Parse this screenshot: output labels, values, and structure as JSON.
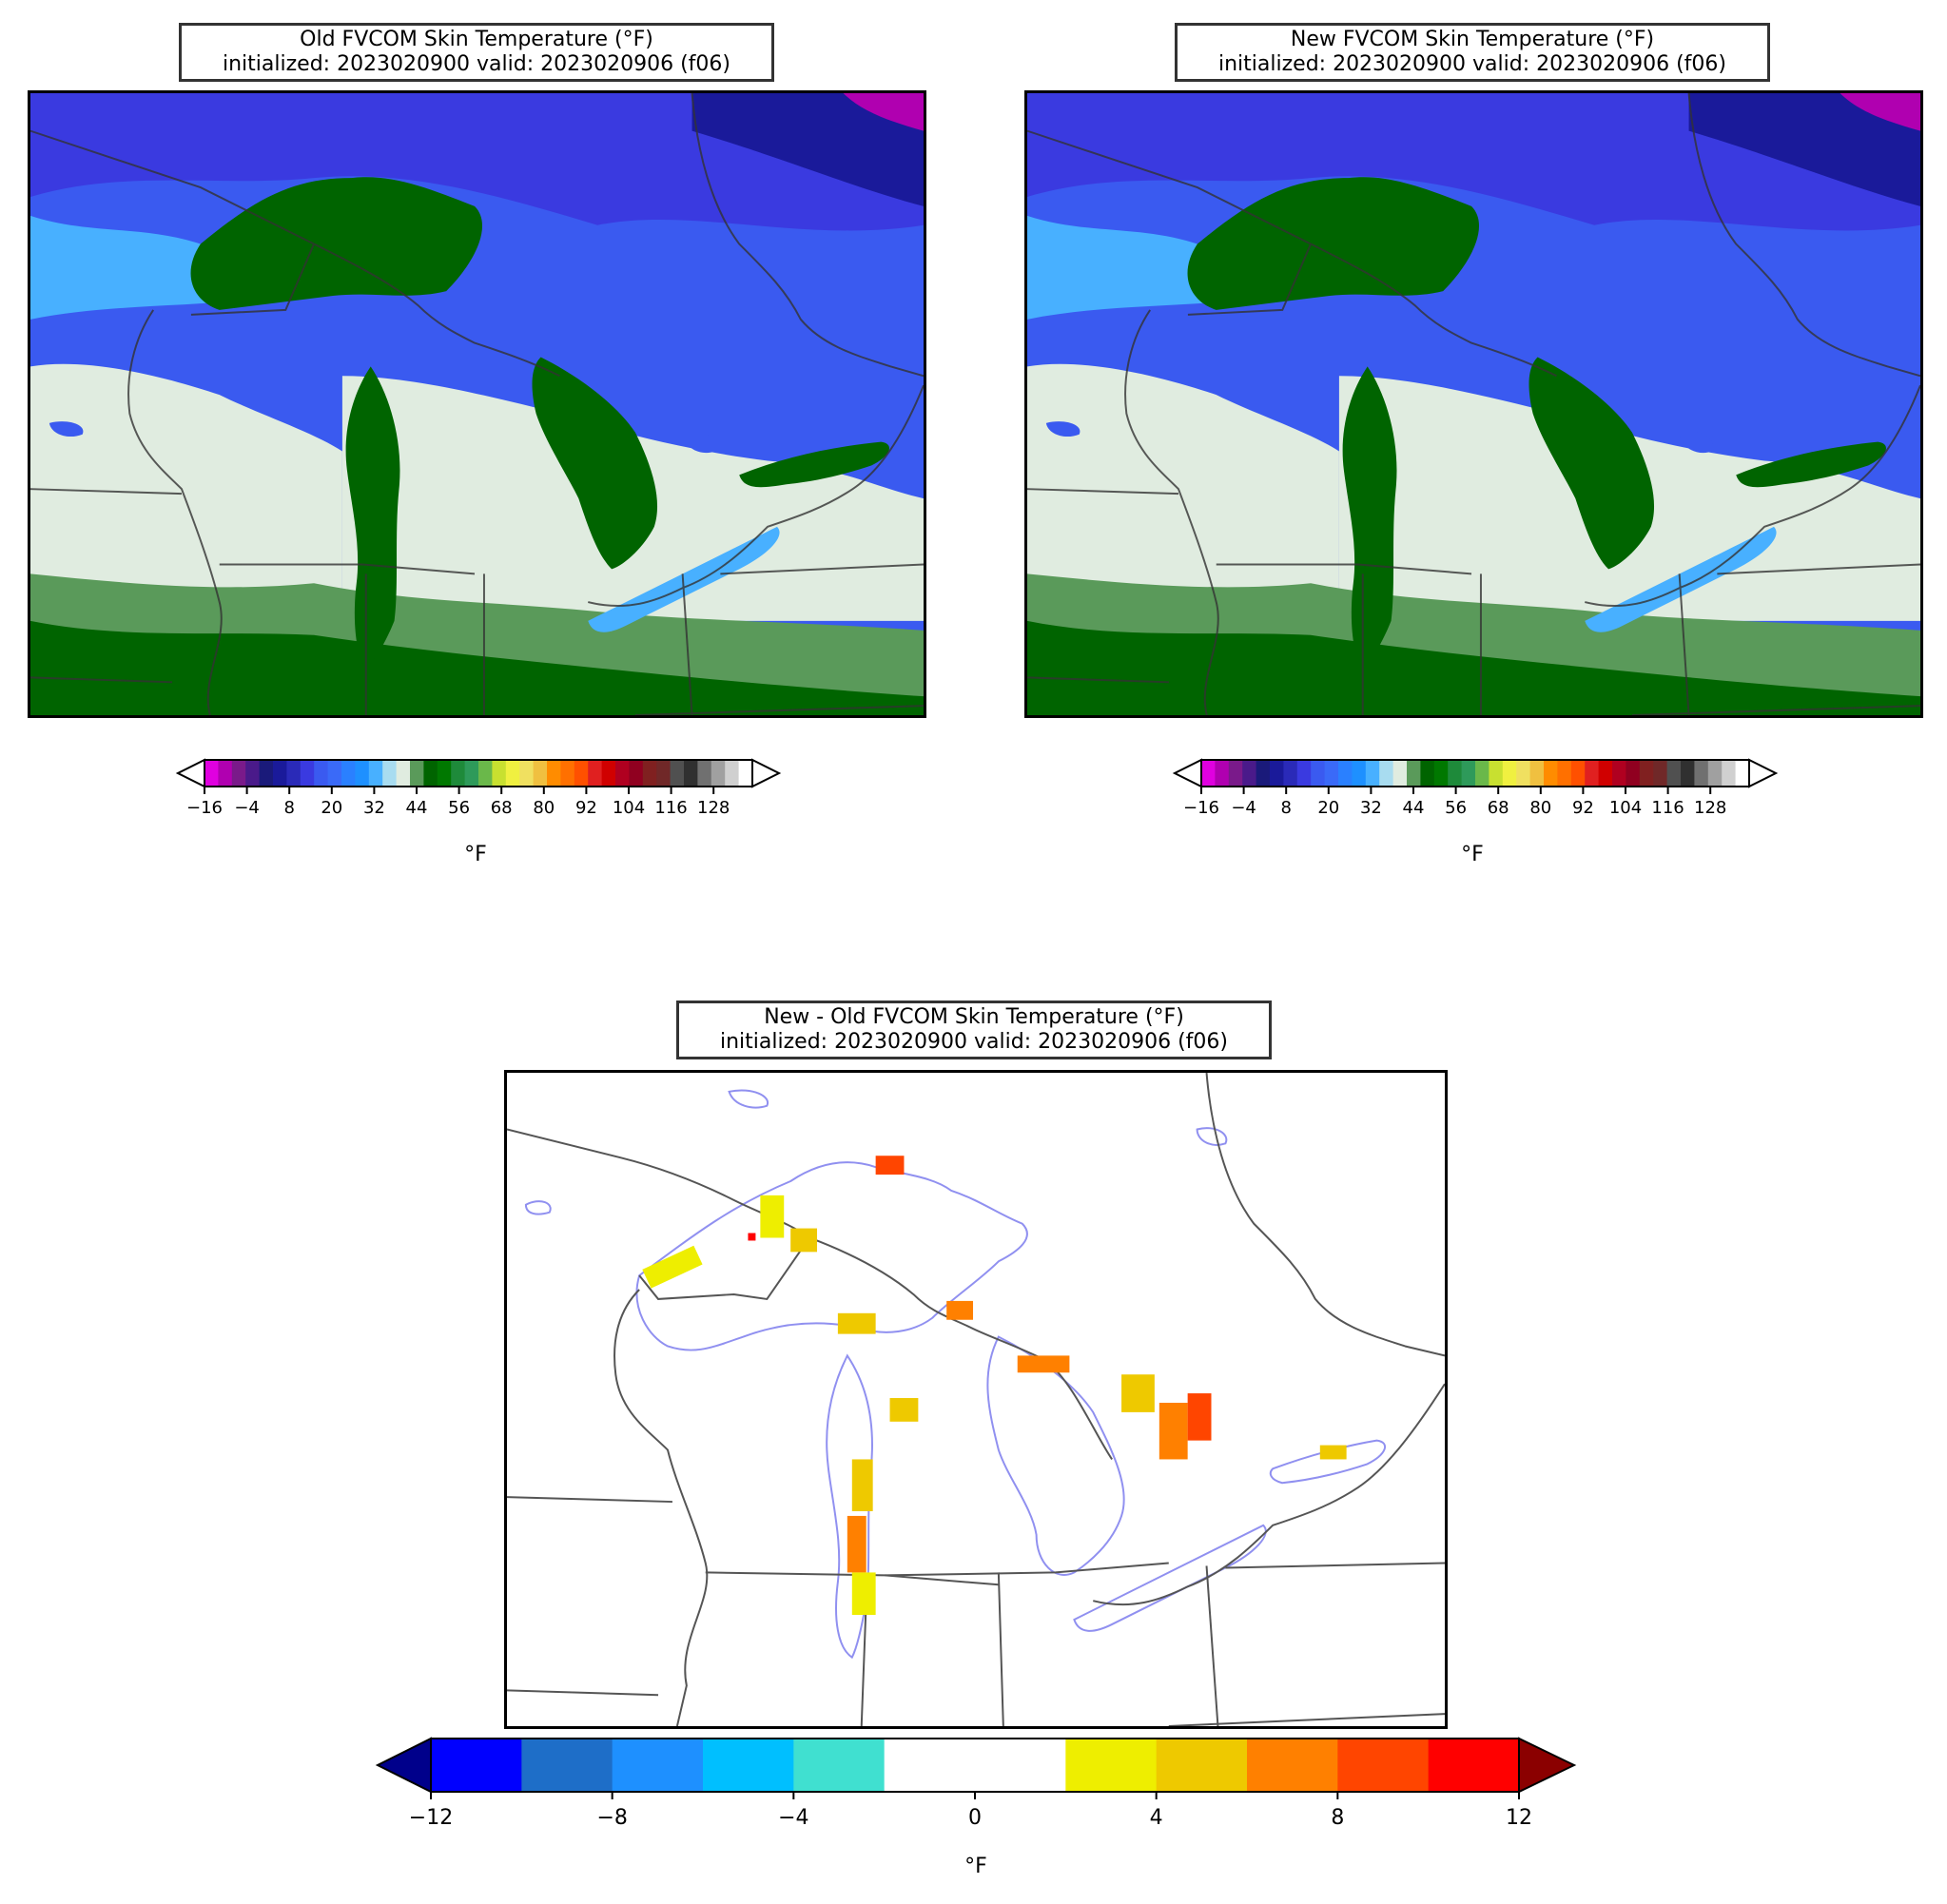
{
  "panels": {
    "old": {
      "title_line1": "Old FVCOM Skin Temperature (°F)",
      "title_line2": "initialized: 2023020900 valid: 2023020906 (f06)",
      "unit": "°F"
    },
    "new": {
      "title_line1": "New FVCOM Skin Temperature (°F)",
      "title_line2": "initialized: 2023020900 valid: 2023020906 (f06)",
      "unit": "°F"
    },
    "diff": {
      "title_line1": "New - Old FVCOM Skin Temperature (°F)",
      "title_line2": "initialized: 2023020900 valid: 2023020906 (f06)",
      "unit": "°F"
    }
  },
  "temp_colorbar": {
    "ticks": [
      "−16",
      "−4",
      "8",
      "20",
      "32",
      "44",
      "56",
      "68",
      "80",
      "92",
      "104",
      "116",
      "128"
    ],
    "colors": [
      "#e000e0",
      "#b000b0",
      "#7a1a8a",
      "#4a1a8a",
      "#1a1a7a",
      "#1a1a9a",
      "#2a2ab8",
      "#3a3ae0",
      "#3a5af0",
      "#3a6af8",
      "#2a80ff",
      "#1e90ff",
      "#48b0ff",
      "#a8dcf0",
      "#e0ece0",
      "#5a9a5a",
      "#006400",
      "#007800",
      "#1e8a3a",
      "#2e9a5a",
      "#6ab84a",
      "#c8e030",
      "#f0f040",
      "#f0e060",
      "#f0c040",
      "#ff8c00",
      "#ff7000",
      "#ff5000",
      "#e02020",
      "#d00000",
      "#b00020",
      "#900020",
      "#802020",
      "#702828",
      "#505050",
      "#303030",
      "#707070",
      "#a0a0a0",
      "#d0d0d0",
      "#ffffff"
    ]
  },
  "diff_colorbar": {
    "ticks": [
      "−12",
      "−8",
      "−4",
      "0",
      "4",
      "8",
      "12"
    ],
    "under_color": "#00008b",
    "over_color": "#8b0000",
    "colors": [
      "#0000ff",
      "#1e6ec8",
      "#1e90ff",
      "#00bfff",
      "#40e0d0",
      "#ffffff",
      "#ffffff",
      "#eeee00",
      "#eec900",
      "#ff8000",
      "#ff4500",
      "#ff0000"
    ]
  }
}
